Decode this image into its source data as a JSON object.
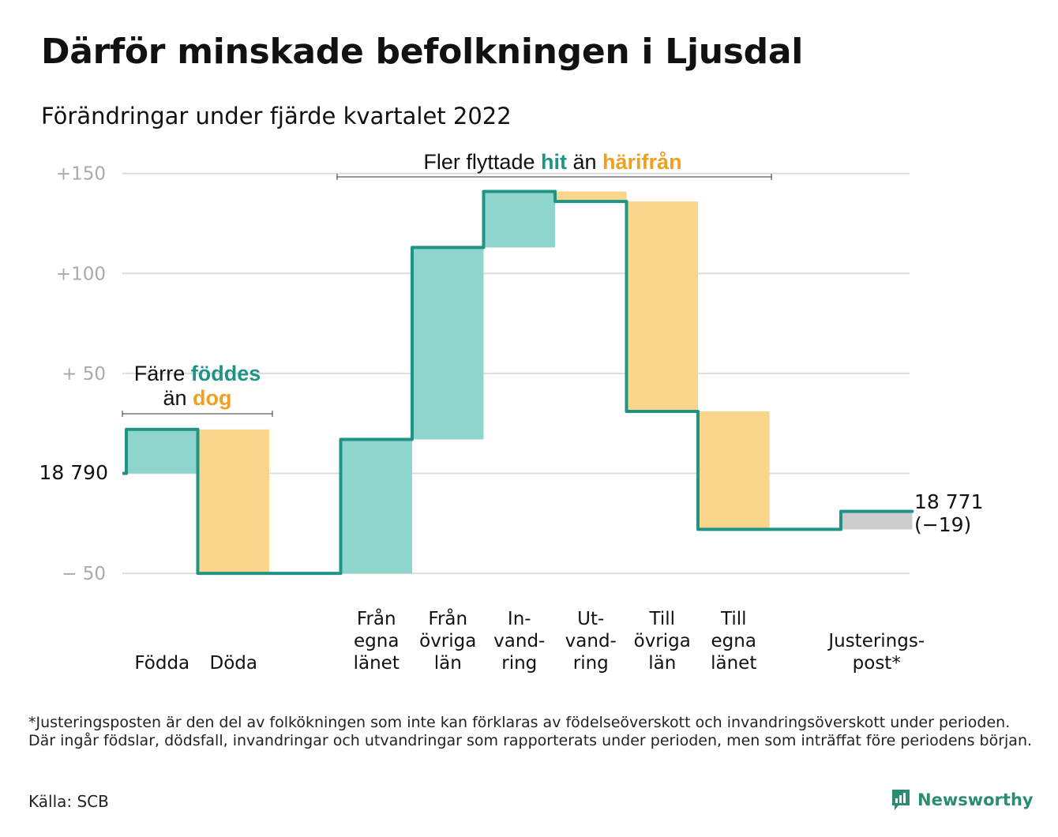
{
  "title": "Därför minskade befolkningen i Ljusdal",
  "subtitle": "Förändringar under fjärde kvartalet 2022",
  "colors": {
    "inflow": "#8dd5cd",
    "outflow": "#fad58c",
    "adjustment": "#cccccc",
    "line": "#1f9486",
    "accent_teal": "#1f9486",
    "accent_orange": "#f0a020",
    "grid": "#dddddd",
    "tick": "#aaaaaa"
  },
  "annotations": {
    "births": {
      "line1_pre": "Färre ",
      "line1_em": "föddes",
      "line2_pre": "än ",
      "line2_em": "dog"
    },
    "migration": {
      "pre": "Fler flyttade ",
      "em1": "hit",
      "mid": " än ",
      "em2": "härifrån"
    }
  },
  "start_label": "18 790",
  "end_label": {
    "line1": "18 771",
    "line2": "(−19)"
  },
  "chart_data": {
    "type": "waterfall",
    "baseline": 18790,
    "end_value": 18771,
    "y_ticks": [
      {
        "value": 150,
        "label": "+150"
      },
      {
        "value": 100,
        "label": "+100"
      },
      {
        "value": 50,
        "label": "+ 50"
      },
      {
        "value": -50,
        "label": "− 50"
      }
    ],
    "ylim": [
      -50,
      150
    ],
    "steps": [
      {
        "label": [
          "Födda"
        ],
        "from": 0,
        "to": 22,
        "kind": "inflow"
      },
      {
        "label": [
          "Döda"
        ],
        "from": 22,
        "to": -50,
        "kind": "outflow"
      },
      {
        "label": [],
        "from": -50,
        "to": -50,
        "kind": "gap"
      },
      {
        "label": [
          "Från",
          "egna",
          "länet"
        ],
        "from": -50,
        "to": 17,
        "kind": "inflow"
      },
      {
        "label": [
          "Från",
          "övriga",
          "län"
        ],
        "from": 17,
        "to": 113,
        "kind": "inflow"
      },
      {
        "label": [
          "In-",
          "vand-",
          "ring"
        ],
        "from": 113,
        "to": 141,
        "kind": "inflow"
      },
      {
        "label": [
          "Ut-",
          "vand-",
          "ring"
        ],
        "from": 141,
        "to": 136,
        "kind": "outflow"
      },
      {
        "label": [
          "Till",
          "övriga",
          "län"
        ],
        "from": 136,
        "to": 31,
        "kind": "outflow"
      },
      {
        "label": [
          "Till",
          "egna",
          "länet"
        ],
        "from": 31,
        "to": -28,
        "kind": "outflow"
      },
      {
        "label": [],
        "from": -28,
        "to": -28,
        "kind": "gap"
      },
      {
        "label": [
          "Justerings-",
          "post*"
        ],
        "from": -28,
        "to": -19,
        "kind": "adjustment"
      }
    ]
  },
  "footnote": "*Justeringsposten är den del av folkökningen som inte kan förklaras av födelseöverskott och invandringsöverskott under perioden. Där ingår födslar, dödsfall, invandringar och utvandringar som rapporterats under perioden, men som inträffat före periodens början.",
  "source": "Källa: SCB",
  "brand": {
    "name": "Newsworthy",
    "icon": "newsworthy-logo-icon"
  }
}
